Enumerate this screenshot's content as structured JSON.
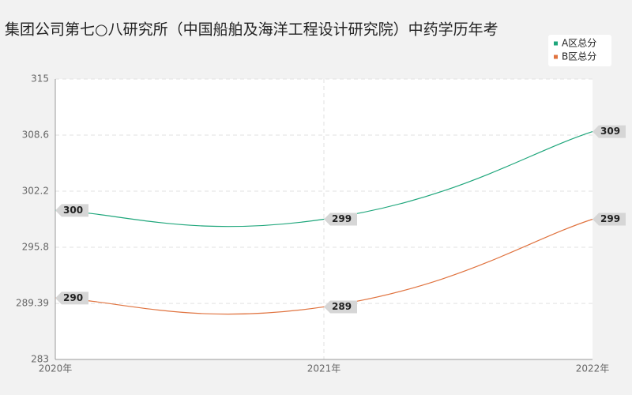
{
  "chart_data": {
    "type": "line",
    "title": "集团公司第七○八研究所（中国船舶及海洋工程设计研究院）中药学历年考",
    "categories": [
      "2020年",
      "2021年",
      "2022年"
    ],
    "series": [
      {
        "name": "A区总分",
        "color": "#1ea67b",
        "values": [
          300,
          299,
          309
        ]
      },
      {
        "name": "B区总分",
        "color": "#e0733f",
        "values": [
          290,
          289,
          299
        ]
      }
    ],
    "ylim": [
      283,
      315
    ],
    "yticks": [
      283,
      289.39,
      295.8,
      302.2,
      308.6,
      315
    ],
    "grid": true,
    "legend": "top-right"
  }
}
